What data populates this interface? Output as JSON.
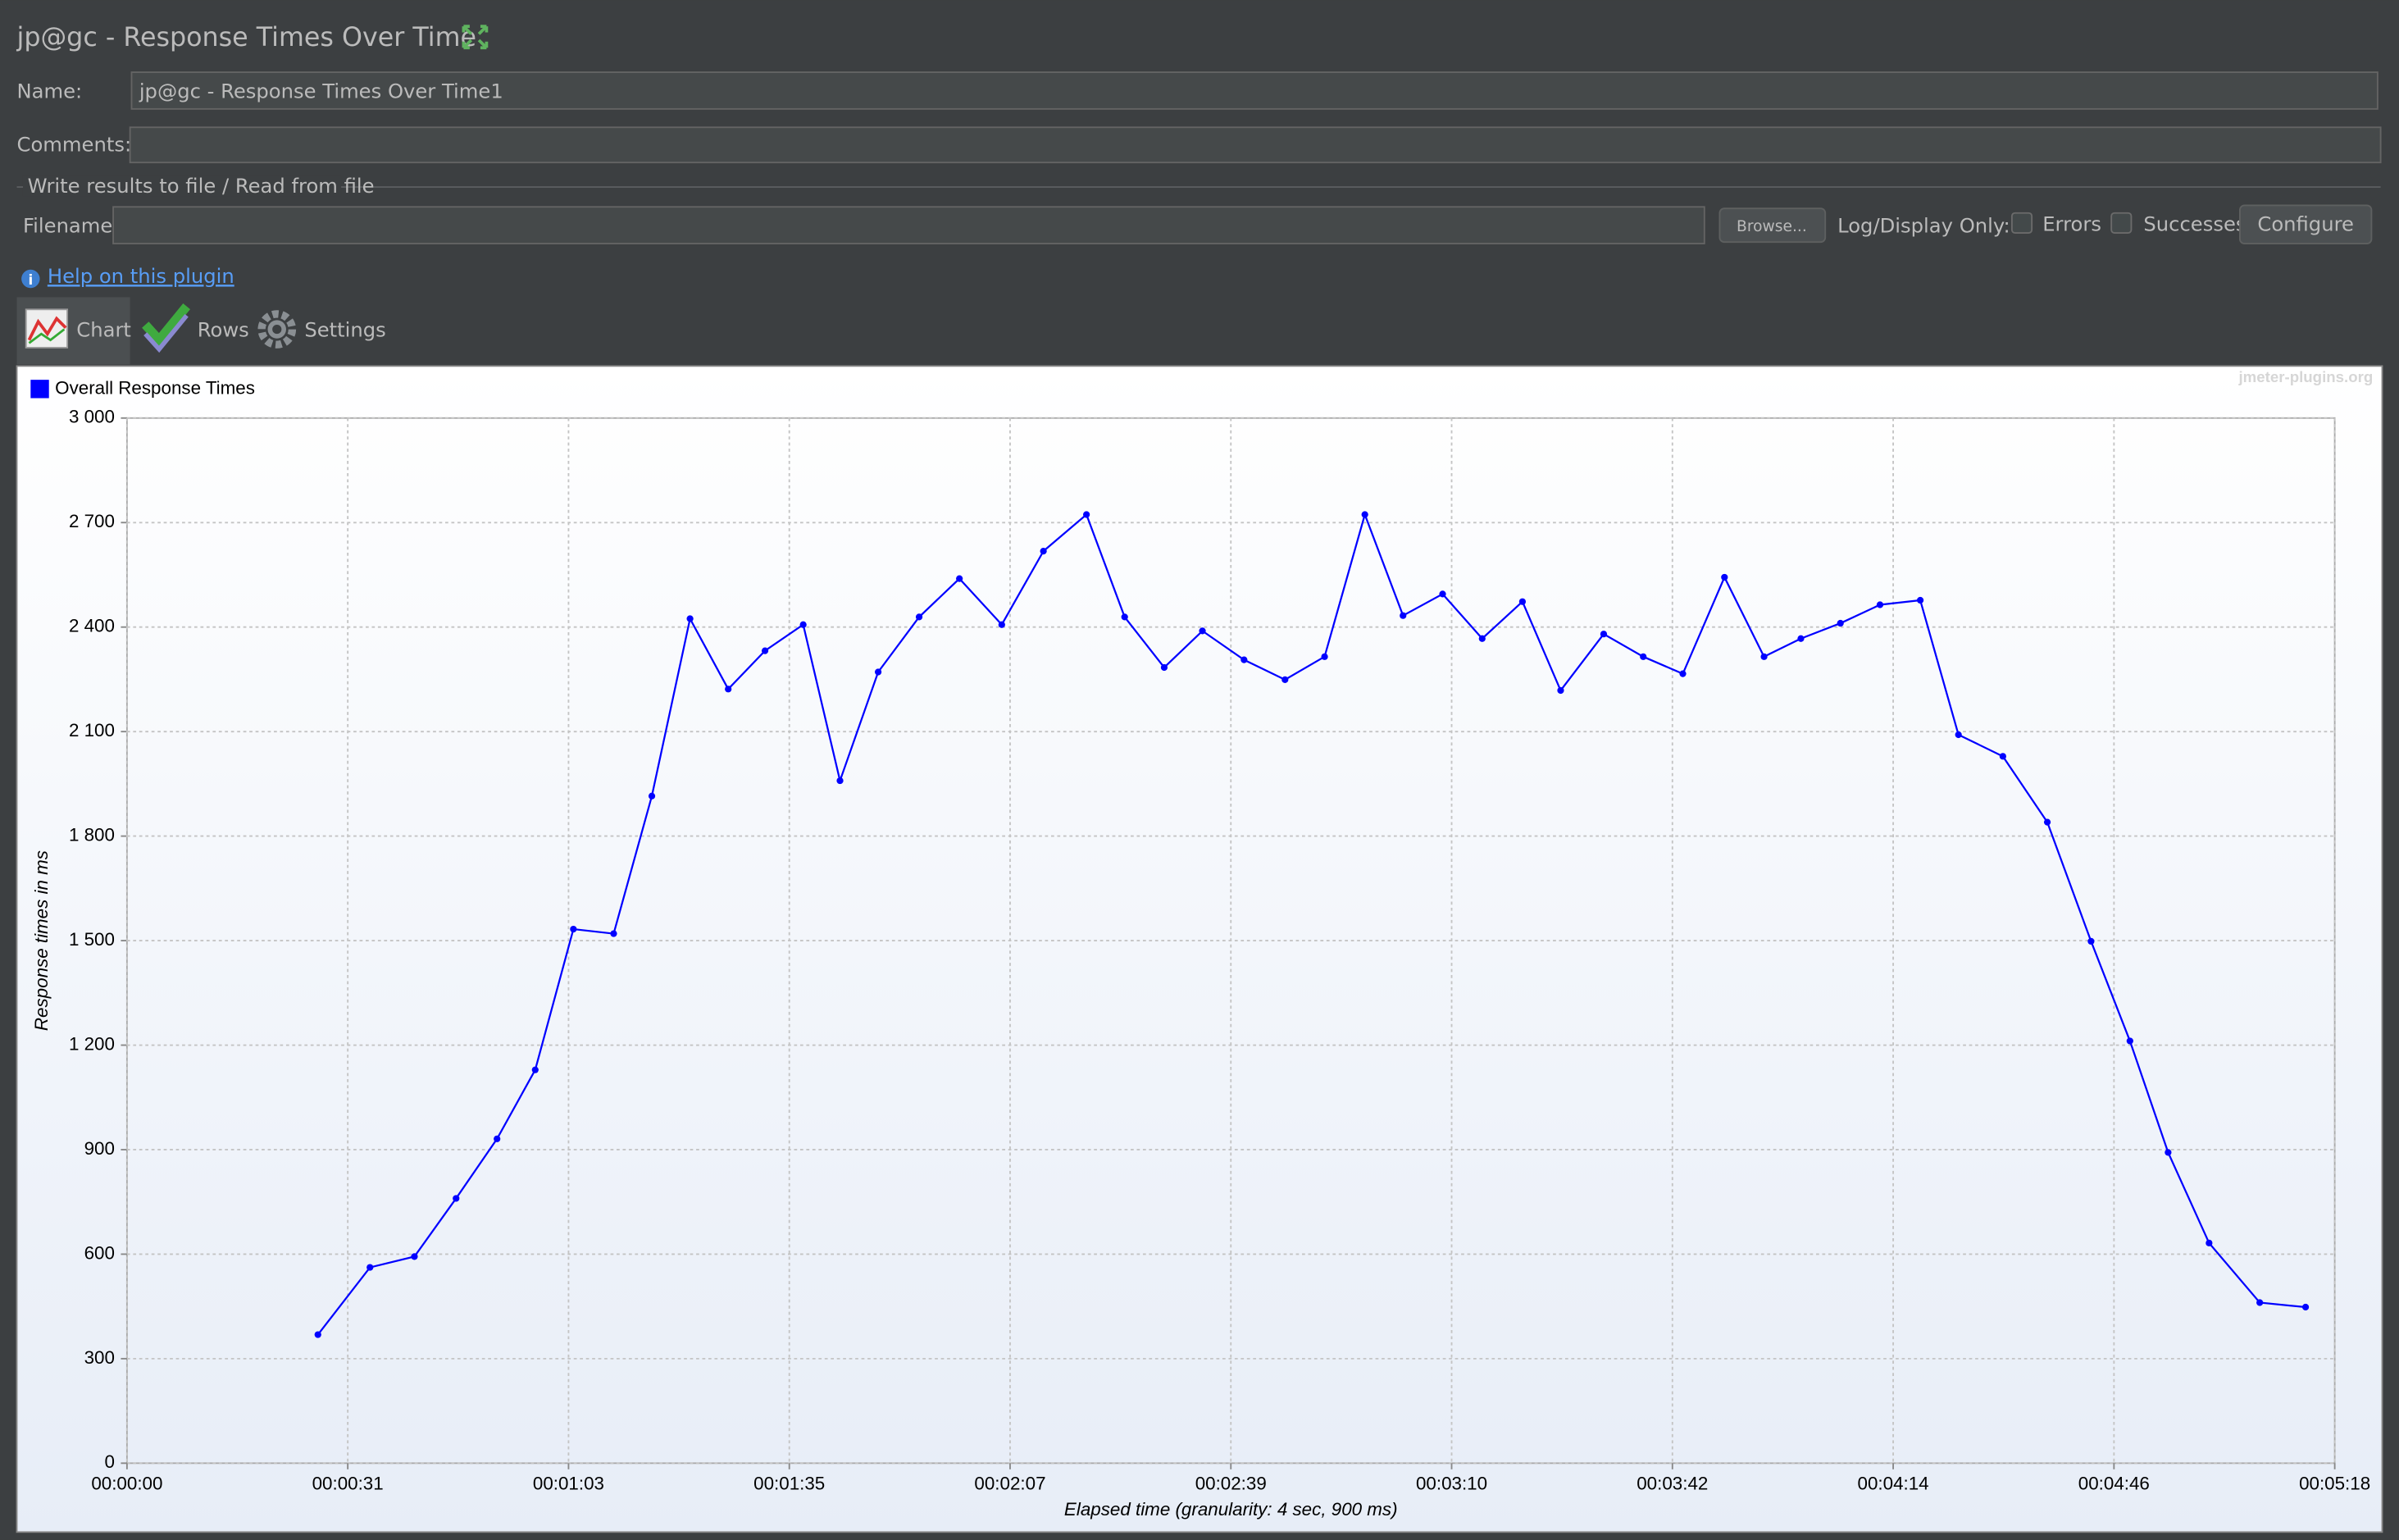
{
  "ui": {
    "window_title": "jp@gc - Response Times Over Time",
    "name_label": "Name:",
    "name_value": "jp@gc - Response Times Over Time1",
    "comments_label": "Comments:",
    "file_section": "Write results to file / Read from file",
    "filename_label": "Filename",
    "browse_button": "Browse...",
    "log_display_label": "Log/Display Only:",
    "errors_label": "Errors",
    "successes_label": "Successes",
    "configure_button": "Configure",
    "help_link": "Help on this plugin",
    "tabs": [
      "Chart",
      "Rows",
      "Settings"
    ],
    "watermark": "jmeter-plugins.org"
  },
  "chart_data": {
    "type": "line",
    "xlabel": "Elapsed time (granularity: 4 sec, 900 ms)",
    "ylabel": "Response times in ms",
    "x": [
      27.5,
      35.0,
      41.4,
      47.4,
      53.3,
      58.8,
      64.3,
      70.1,
      75.6,
      81.1,
      86.6,
      91.9,
      97.4,
      102.7,
      108.2,
      114.1,
      119.9,
      126.0,
      132.0,
      138.2,
      143.7,
      149.4,
      154.9,
      160.9,
      166.8,
      172.5,
      178.3,
      183.8,
      189.5,
      195.2,
      201.0,
      206.5,
      212.7,
      218.4,
      224.1,
      230.1,
      235.8,
      241.1,
      246.8,
      252.5,
      258.3,
      263.8,
      270.2,
      276.6,
      282.9,
      288.5,
      294.0,
      299.9,
      307.2,
      313.8
    ],
    "series": [
      {
        "name": "Overall Response Times",
        "color": "#0000ff",
        "values": [
          369,
          562,
          593,
          760,
          931,
          1129,
          1533,
          1520,
          1915,
          2424,
          2222,
          2332,
          2407,
          1959,
          2271,
          2429,
          2539,
          2407,
          2618,
          2723,
          2429,
          2284,
          2389,
          2306,
          2249,
          2315,
          2723,
          2433,
          2495,
          2367,
          2473,
          2218,
          2380,
          2315,
          2266,
          2543,
          2315,
          2367,
          2411,
          2464,
          2477,
          2091,
          2029,
          1840,
          1498,
          1212,
          892,
          632,
          461,
          448
        ]
      }
    ],
    "xlim": [
      0,
      318
    ],
    "xticks": [
      {
        "value": 0,
        "label": "00:00:00"
      },
      {
        "value": 31.8,
        "label": "00:00:31"
      },
      {
        "value": 63.6,
        "label": "00:01:03"
      },
      {
        "value": 95.4,
        "label": "00:01:35"
      },
      {
        "value": 127.2,
        "label": "00:02:07"
      },
      {
        "value": 159,
        "label": "00:02:39"
      },
      {
        "value": 190.8,
        "label": "00:03:10"
      },
      {
        "value": 222.6,
        "label": "00:03:42"
      },
      {
        "value": 254.4,
        "label": "00:04:14"
      },
      {
        "value": 286.2,
        "label": "00:04:46"
      },
      {
        "value": 318,
        "label": "00:05:18"
      }
    ],
    "ylim": [
      0,
      3000
    ],
    "yticks": [
      0,
      {
        "value": 300,
        "label": "300"
      },
      600,
      900,
      {
        "value": 1200,
        "label": "1 200"
      },
      {
        "value": 1500,
        "label": "1 500"
      },
      {
        "value": 1800,
        "label": "1 800"
      },
      {
        "value": 2100,
        "label": "2 100"
      },
      {
        "value": 2400,
        "label": "2 400"
      },
      {
        "value": 2700,
        "label": "2 700"
      },
      {
        "value": 3000,
        "label": "3 000"
      }
    ],
    "grid": true,
    "legend": "top-left"
  }
}
